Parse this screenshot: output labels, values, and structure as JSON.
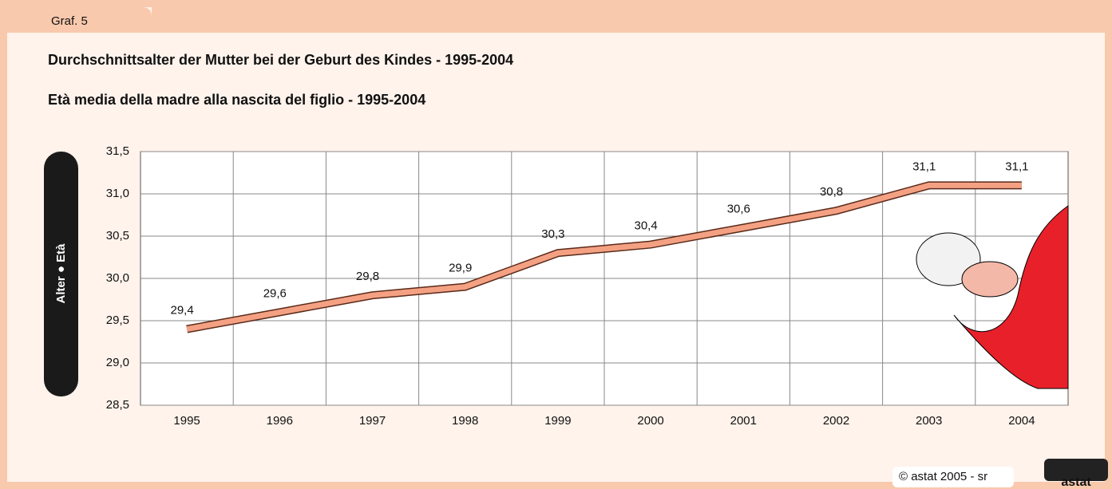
{
  "tab": "Graf. 5",
  "footer": "© astat 2005 - sr",
  "logo": "astat",
  "chart_data": {
    "type": "line",
    "title": "Durchschnittsalter der Mutter bei der Geburt des Kindes - 1995-2004",
    "subtitle": "Età media della madre alla nascita del figlio - 1995-2004",
    "y_label": "Alter ● Età",
    "categories": [
      "1995",
      "1996",
      "1997",
      "1998",
      "1999",
      "2000",
      "2001",
      "2002",
      "2003",
      "2004"
    ],
    "values": [
      29.4,
      29.6,
      29.8,
      29.9,
      30.3,
      30.4,
      30.6,
      30.8,
      31.1,
      31.1
    ],
    "value_labels": [
      "29,4",
      "29,6",
      "29,8",
      "29,9",
      "30,3",
      "30,4",
      "30,6",
      "30,8",
      "31,1",
      "31,1"
    ],
    "color": "#f4a183",
    "ylim": [
      28.5,
      31.5
    ],
    "yticks": [
      {
        "value": 28.5,
        "label": "28,5"
      },
      {
        "value": 29.0,
        "label": "29,0"
      },
      {
        "value": 29.5,
        "label": "29,5"
      },
      {
        "value": 30.0,
        "label": "30,0"
      },
      {
        "value": 30.5,
        "label": "30,5"
      },
      {
        "value": 31.0,
        "label": "31,0"
      },
      {
        "value": 31.5,
        "label": "31,5"
      }
    ],
    "grid": true
  }
}
